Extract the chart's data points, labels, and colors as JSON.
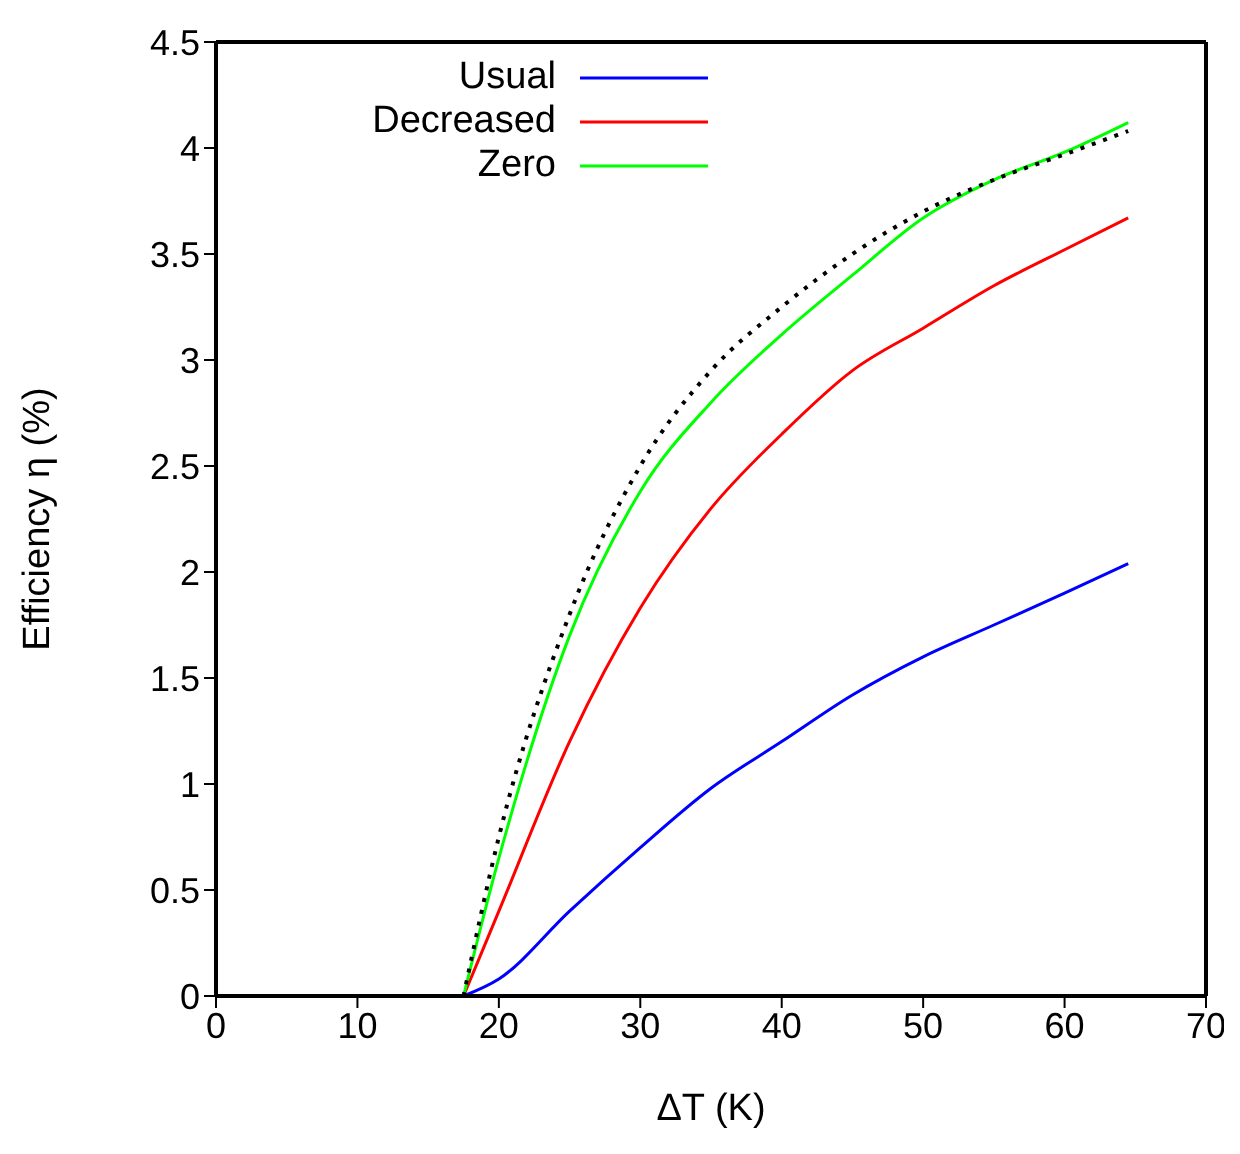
{
  "chart_data": {
    "type": "line",
    "xlabel": "ΔT (K)",
    "ylabel": "Efficiency η (%)",
    "x": [
      17.5,
      20,
      25,
      30,
      35,
      40,
      45,
      50,
      55,
      60,
      64.5
    ],
    "series": [
      {
        "name": "Usual",
        "color": "#0000ff",
        "values": [
          0,
          0.08,
          0.4,
          0.7,
          0.98,
          1.2,
          1.42,
          1.6,
          1.75,
          1.9,
          2.04
        ]
      },
      {
        "name": "Decreased",
        "color": "#ff0000",
        "values": [
          0,
          0.4,
          1.2,
          1.83,
          2.3,
          2.65,
          2.95,
          3.15,
          3.35,
          3.52,
          3.67
        ]
      },
      {
        "name": "Zero",
        "color": "#00ff00",
        "values": [
          0,
          0.65,
          1.7,
          2.38,
          2.8,
          3.12,
          3.4,
          3.67,
          3.85,
          3.98,
          4.12
        ]
      },
      {
        "color": "#000000",
        "line_style": "dotted",
        "values": [
          0,
          0.75,
          1.8,
          2.5,
          2.95,
          3.25,
          3.5,
          3.7,
          3.85,
          3.97,
          4.08
        ]
      }
    ],
    "xlim": [
      0,
      70
    ],
    "xticks": [
      0,
      10,
      20,
      30,
      40,
      50,
      60,
      70
    ],
    "ylim": [
      0,
      4.5
    ],
    "yticks": [
      0,
      0.5,
      1,
      1.5,
      2,
      2.5,
      3,
      3.5,
      4,
      4.5
    ],
    "legend": "top left",
    "marker": "none",
    "grid": false,
    "line_style": "solid"
  }
}
